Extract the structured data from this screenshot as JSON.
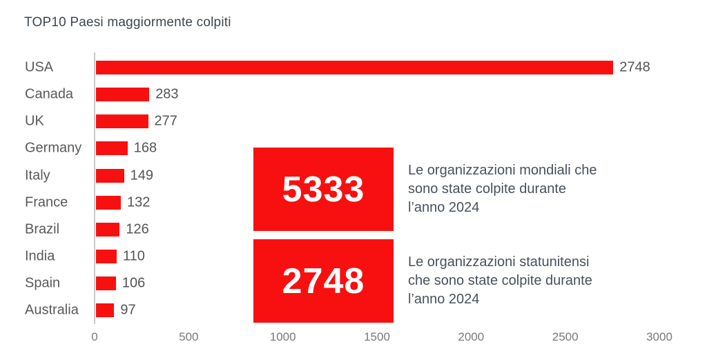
{
  "title": "TOP10 Paesi maggiormente colpiti",
  "colors": {
    "red": "#F81010",
    "title_text": "#3C4650",
    "desc_text": "#47515C",
    "label_text": "#595959",
    "tick_text": "#7A7A7A",
    "axis_line": "#C9C9C9",
    "stat_number": "#FFFFFF"
  },
  "chart_data": {
    "type": "bar",
    "orientation": "horizontal",
    "title": "TOP10 Paesi maggiormente colpiti",
    "categories": [
      "USA",
      "Canada",
      "UK",
      "Germany",
      "Italy",
      "France",
      "Brazil",
      "India",
      "Spain",
      "Australia"
    ],
    "values": [
      2748,
      283,
      277,
      168,
      149,
      132,
      126,
      110,
      106,
      97
    ],
    "value_labels": [
      "2748",
      "283",
      "277",
      "168",
      "149",
      "132",
      "126",
      "110",
      "106",
      "97"
    ],
    "xlabel": "",
    "ylabel": "",
    "xlim": [
      0,
      3000
    ],
    "x_ticks": [
      0,
      500,
      1000,
      1500,
      2000,
      2500,
      3000
    ],
    "grid": false,
    "legend": null,
    "bar_color": "#F81010",
    "value_labels_shown": true
  },
  "stat_cards": [
    {
      "value": "5333",
      "description": "Le organizzazioni mondiali che\nsono state colpite durante\nl’anno 2024"
    },
    {
      "value": "2748",
      "description": "Le organizzazioni statunitensi\nche sono state colpite durante\nl’anno 2024"
    }
  ]
}
